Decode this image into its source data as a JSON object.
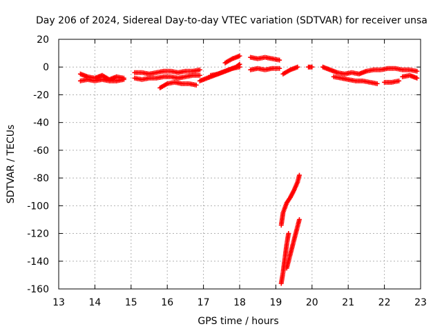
{
  "chart_data": {
    "type": "scatter",
    "title": "Day 206 of 2024, Sidereal Day-to-day VTEC variation (SDTVAR) for receiver unsa",
    "xlabel": "GPS time / hours",
    "ylabel": "SDTVAR / TECUs",
    "xlim": [
      13,
      23
    ],
    "ylim": [
      -160,
      20
    ],
    "xticks": [
      13,
      14,
      15,
      16,
      17,
      18,
      19,
      20,
      21,
      22,
      23
    ],
    "yticks": [
      20,
      0,
      -20,
      -40,
      -60,
      -80,
      -100,
      -120,
      -140,
      -160
    ],
    "grid": true,
    "marker": "+",
    "color": "#ff0000",
    "series_segments": [
      {
        "x": [
          13.6,
          13.8,
          14.0,
          14.2,
          14.4,
          14.6,
          14.8
        ],
        "y": [
          -5,
          -7,
          -8,
          -6,
          -9,
          -7,
          -8
        ]
      },
      {
        "x": [
          13.6,
          13.8,
          14.0,
          14.2,
          14.4,
          14.6,
          14.8
        ],
        "y": [
          -10,
          -9,
          -10,
          -9,
          -10,
          -10,
          -9
        ]
      },
      {
        "x": [
          15.1,
          15.3,
          15.5,
          15.7,
          15.9,
          16.1,
          16.3,
          16.5,
          16.7,
          16.9
        ],
        "y": [
          -4,
          -4,
          -5,
          -4,
          -3,
          -3,
          -4,
          -3,
          -3,
          -2
        ]
      },
      {
        "x": [
          15.1,
          15.3,
          15.5,
          15.7,
          15.9,
          16.1,
          16.3,
          16.5,
          16.7,
          16.9
        ],
        "y": [
          -8,
          -9,
          -8,
          -8,
          -7,
          -7,
          -8,
          -7,
          -6,
          -6
        ]
      },
      {
        "x": [
          15.8,
          16.0,
          16.2,
          16.4,
          16.6,
          16.8
        ],
        "y": [
          -15,
          -12,
          -11,
          -12,
          -12,
          -13
        ]
      },
      {
        "x": [
          16.9,
          17.1,
          17.3,
          17.5,
          17.7,
          17.9,
          18.0
        ],
        "y": [
          -10,
          -8,
          -6,
          -4,
          -2,
          0,
          2
        ]
      },
      {
        "x": [
          17.2,
          17.4,
          17.6,
          17.8,
          18.0
        ],
        "y": [
          -6,
          -5,
          -3,
          -1,
          0
        ]
      },
      {
        "x": [
          17.6,
          17.8,
          18.0
        ],
        "y": [
          3,
          6,
          8
        ]
      },
      {
        "x": [
          18.3,
          18.5,
          18.7,
          18.9,
          19.1
        ],
        "y": [
          7,
          6,
          7,
          6,
          5
        ]
      },
      {
        "x": [
          18.3,
          18.5,
          18.7,
          18.9,
          19.1
        ],
        "y": [
          -2,
          -1,
          -2,
          -1,
          -1
        ]
      },
      {
        "x": [
          19.2,
          19.4,
          19.6
        ],
        "y": [
          -5,
          -2,
          0
        ]
      },
      {
        "x": [
          19.9,
          20.0
        ],
        "y": [
          0,
          0
        ]
      },
      {
        "x": [
          20.3,
          20.5,
          20.7,
          20.9,
          21.1,
          21.3,
          21.5,
          21.7,
          21.9,
          22.1,
          22.3,
          22.5,
          22.7,
          22.9
        ],
        "y": [
          0,
          -2,
          -4,
          -5,
          -4,
          -5,
          -3,
          -2,
          -2,
          -1,
          -1,
          -2,
          -2,
          -3
        ]
      },
      {
        "x": [
          20.6,
          20.8,
          21.0,
          21.2,
          21.4,
          21.6,
          21.8
        ],
        "y": [
          -7,
          -8,
          -9,
          -10,
          -10,
          -11,
          -12
        ]
      },
      {
        "x": [
          22.0,
          22.2,
          22.4
        ],
        "y": [
          -11,
          -11,
          -10
        ]
      },
      {
        "x": [
          22.5,
          22.7,
          22.9
        ],
        "y": [
          -7,
          -6,
          -8
        ]
      },
      {
        "x": [
          19.15,
          19.2,
          19.3,
          19.4,
          19.5,
          19.6,
          19.65
        ],
        "y": [
          -114,
          -105,
          -98,
          -94,
          -89,
          -83,
          -78
        ]
      },
      {
        "x": [
          19.15,
          19.2,
          19.25,
          19.3,
          19.35
        ],
        "y": [
          -156,
          -148,
          -138,
          -128,
          -120
        ]
      },
      {
        "x": [
          19.3,
          19.4,
          19.5,
          19.6,
          19.65
        ],
        "y": [
          -145,
          -135,
          -125,
          -115,
          -110
        ]
      }
    ]
  }
}
